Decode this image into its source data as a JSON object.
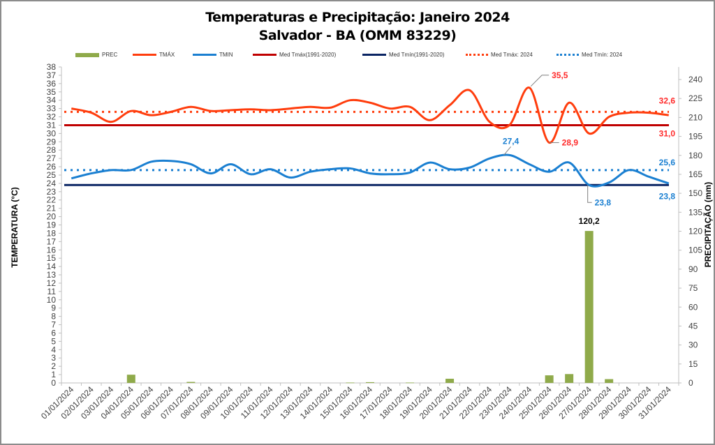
{
  "chart_data": {
    "type": "bar+line",
    "title": "Temperaturas e Precipitação: Janeiro 2024",
    "subtitle": "Salvador - BA (OMM 83229)",
    "ylabel_left": "TEMPERATURA  (°C)",
    "ylabel_right": "PRECIPITAÇÃO  (mm)",
    "ylim_left": [
      0,
      38
    ],
    "ylim_right": [
      0,
      240
    ],
    "yticks_left": [
      0,
      1,
      2,
      3,
      4,
      5,
      6,
      7,
      8,
      9,
      10,
      11,
      12,
      13,
      14,
      15,
      16,
      17,
      18,
      19,
      20,
      21,
      22,
      23,
      24,
      25,
      26,
      27,
      28,
      29,
      30,
      31,
      32,
      33,
      34,
      35,
      36,
      37,
      38
    ],
    "yticks_right": [
      0,
      15,
      30,
      45,
      60,
      75,
      90,
      105,
      120,
      135,
      150,
      165,
      180,
      195,
      210,
      225,
      240
    ],
    "categories": [
      "01/01/2024",
      "02/01/2024",
      "03/01/2024",
      "04/01/2024",
      "05/01/2024",
      "06/01/2024",
      "07/01/2024",
      "08/01/2024",
      "09/01/2024",
      "10/01/2024",
      "11/01/2024",
      "12/01/2024",
      "13/01/2024",
      "14/01/2024",
      "15/01/2024",
      "16/01/2024",
      "17/01/2024",
      "18/01/2024",
      "19/01/2024",
      "20/01/2024",
      "21/01/2024",
      "22/01/2024",
      "23/01/2024",
      "24/01/2024",
      "25/01/2024",
      "26/01/2024",
      "27/01/2024",
      "28/01/2024",
      "29/01/2024",
      "30/01/2024",
      "31/01/2024"
    ],
    "legend_position": "top",
    "grid": false,
    "series": [
      {
        "name": "PREC",
        "kind": "bar",
        "axis": "right",
        "color": "#8faa4a",
        "values": [
          0,
          0,
          0,
          6.5,
          0,
          0,
          0.8,
          0,
          0,
          0,
          0,
          0,
          0,
          0,
          0.3,
          0.6,
          0,
          0.3,
          0,
          3.3,
          0,
          0,
          0,
          0,
          6,
          7,
          120.2,
          3,
          0,
          0,
          0
        ]
      },
      {
        "name": "TMÁX",
        "kind": "line",
        "axis": "left",
        "color": "#ff3d0d",
        "values": [
          33.0,
          32.5,
          31.4,
          32.7,
          32.2,
          32.6,
          33.2,
          32.7,
          32.8,
          32.9,
          32.8,
          33.0,
          33.2,
          33.1,
          34.0,
          33.7,
          33.0,
          33.2,
          31.6,
          33.4,
          35.2,
          31.4,
          31.0,
          35.5,
          28.9,
          33.7,
          30.0,
          32.0,
          32.5,
          32.5,
          32.2
        ]
      },
      {
        "name": "TMIN",
        "kind": "line",
        "axis": "left",
        "color": "#1a7fd1",
        "values": [
          24.6,
          25.2,
          25.6,
          25.6,
          26.6,
          26.7,
          26.3,
          25.2,
          26.3,
          25.1,
          25.7,
          24.7,
          25.4,
          25.7,
          25.8,
          25.2,
          25.1,
          25.3,
          26.5,
          25.7,
          25.9,
          27.0,
          27.4,
          26.3,
          25.4,
          26.5,
          23.8,
          24.1,
          25.6,
          24.8,
          24.0
        ]
      },
      {
        "name": "Med Tmáx(1991-2020)",
        "kind": "hline",
        "axis": "left",
        "color": "#c00000",
        "value": 31.0
      },
      {
        "name": "Med Tmín(1991-2020)",
        "kind": "hline",
        "axis": "left",
        "color": "#0a2463",
        "value": 23.8
      },
      {
        "name": "Med Tmáx: 2024",
        "kind": "hline-dotted",
        "axis": "left",
        "color": "#ff3d0d",
        "value": 32.6
      },
      {
        "name": "Med Tmín: 2024",
        "kind": "hline-dotted",
        "axis": "left",
        "color": "#1a7fd1",
        "value": 25.6
      }
    ],
    "annotations": [
      {
        "text": "35,5",
        "series": "TMÁX",
        "index": 23,
        "color": "#ff2b2b"
      },
      {
        "text": "28,9",
        "series": "TMÁX",
        "index": 24,
        "color": "#ff2b2b"
      },
      {
        "text": "27,4",
        "series": "TMIN",
        "index": 22,
        "color": "#1a7fd1"
      },
      {
        "text": "23,8",
        "series": "TMIN",
        "index": 26,
        "color": "#1a7fd1"
      },
      {
        "text": "120,2",
        "series": "PREC",
        "index": 26,
        "color": "#000000"
      },
      {
        "text": "32,6",
        "series": "Med Tmáx: 2024",
        "color": "#ff2b2b"
      },
      {
        "text": "31,0",
        "series": "Med Tmáx(1991-2020)",
        "color": "#ff2b2b"
      },
      {
        "text": "25,6",
        "series": "Med Tmín: 2024",
        "color": "#1a7fd1"
      },
      {
        "text": "23,8",
        "series": "Med Tmín(1991-2020)",
        "color": "#1a7fd1"
      }
    ]
  }
}
